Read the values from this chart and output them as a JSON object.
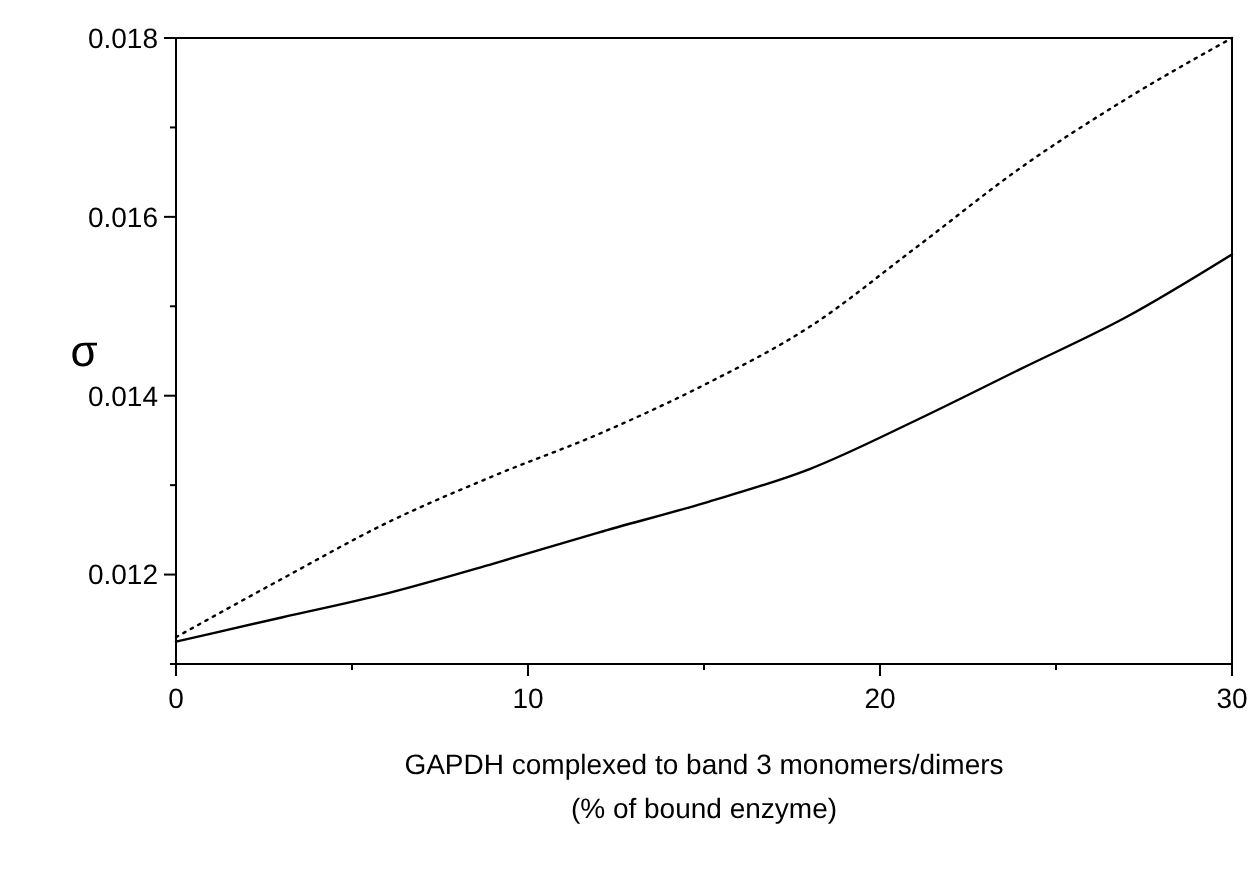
{
  "chart_data": {
    "type": "line",
    "xlabel": "GAPDH complexed to band 3 monomers/dimers\n(% of bound enzyme)",
    "ylabel": "σ",
    "x": [
      0,
      3,
      6,
      9,
      12,
      15,
      18,
      21,
      24,
      27,
      30
    ],
    "series": [
      {
        "color": "#000000",
        "line_style": "solid",
        "values": [
          0.01125,
          0.01152,
          0.01179,
          0.01212,
          0.01247,
          0.0128,
          0.01318,
          0.01372,
          0.0143,
          0.01488,
          0.01558
        ]
      },
      {
        "color": "#000000",
        "line_style": "dotted",
        "values": [
          0.0113,
          0.01195,
          0.01258,
          0.0131,
          0.01357,
          0.01412,
          0.01477,
          0.01565,
          0.01655,
          0.01732,
          0.018
        ]
      }
    ],
    "xlim": [
      0,
      30
    ],
    "ylim": [
      0.011,
      0.018
    ],
    "xticks": [
      0,
      {
        "value": 5,
        "label": null
      },
      10,
      {
        "value": 15,
        "label": null
      },
      20,
      {
        "value": 25,
        "label": null
      },
      30
    ],
    "yticks": [
      {
        "value": 0.011,
        "label": null
      },
      0.012,
      {
        "value": 0.013,
        "label": null
      },
      0.014,
      {
        "value": 0.015,
        "label": null
      },
      0.016,
      {
        "value": 0.017,
        "label": null
      },
      0.018
    ],
    "grid": false,
    "marker": "none"
  }
}
